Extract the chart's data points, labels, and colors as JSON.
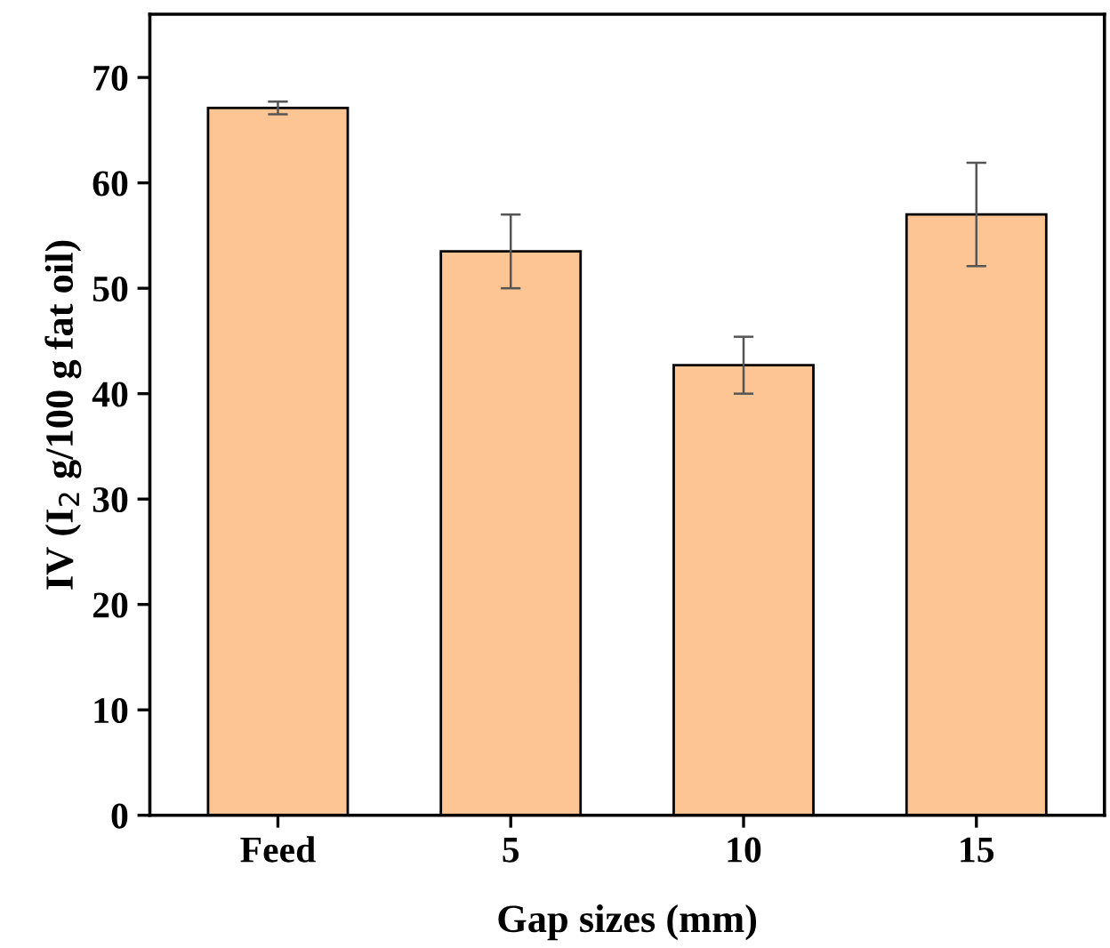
{
  "chart_data": {
    "type": "bar",
    "xlabel": "Gap sizes (mm)",
    "ylabel": "IV (I$_{2}$ g/100 g fat oil)",
    "categories": [
      "Feed",
      "5",
      "10",
      "15"
    ],
    "values": [
      67.1,
      53.5,
      42.7,
      57.0
    ],
    "errors": [
      0.6,
      3.5,
      2.7,
      4.9
    ],
    "color": "#fdc594",
    "ylim": [
      0,
      76
    ],
    "yticks": [
      0,
      10,
      20,
      30,
      40,
      50,
      60,
      70
    ],
    "grid": false,
    "legend": false
  }
}
